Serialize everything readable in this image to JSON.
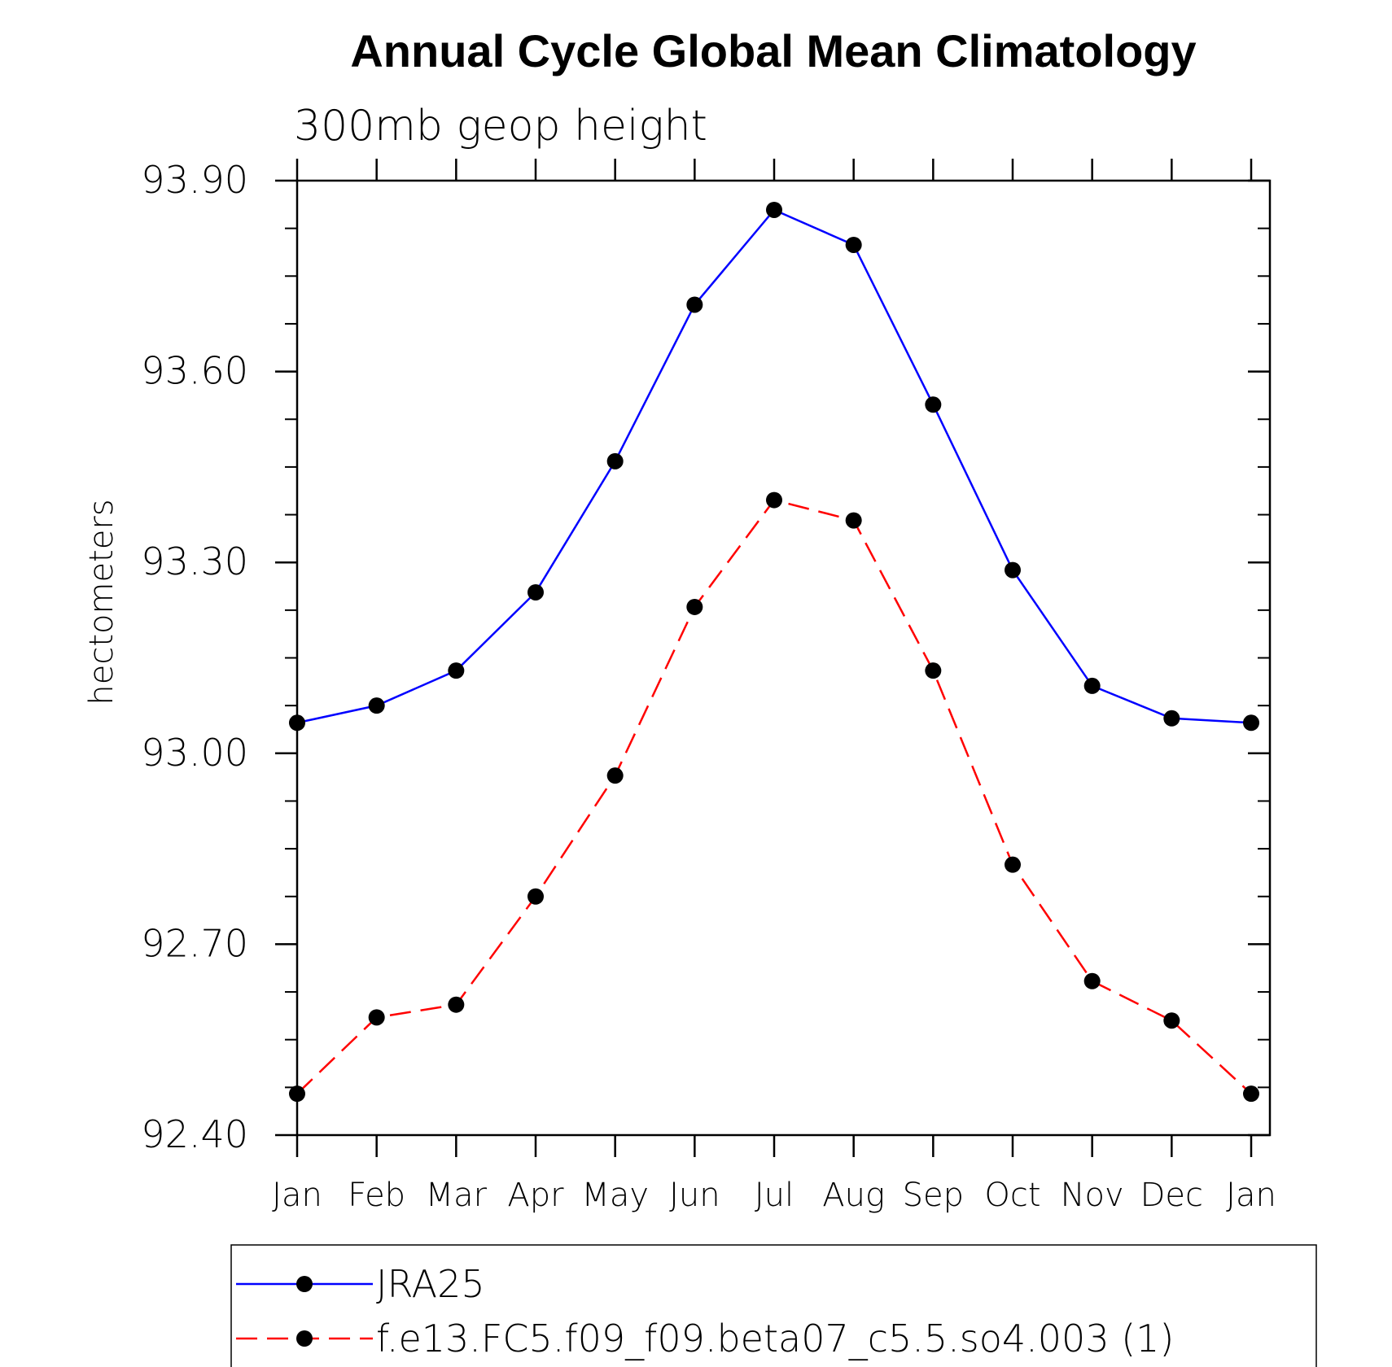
{
  "chart_data": {
    "type": "line",
    "title": "Annual Cycle Global Mean Climatology",
    "subtitle": "300mb geop height",
    "ylabel": "hectometers",
    "xlabel": "",
    "categories": [
      "Jan",
      "Feb",
      "Mar",
      "Apr",
      "May",
      "Jun",
      "Jul",
      "Aug",
      "Sep",
      "Oct",
      "Nov",
      "Dec",
      "Jan"
    ],
    "ylim": [
      92.4,
      93.9
    ],
    "yticks": [
      "93.90",
      "93.60",
      "93.30",
      "93.00",
      "92.70",
      "92.40"
    ],
    "ytick_values": [
      93.9,
      93.6,
      93.3,
      93.0,
      92.7,
      92.4
    ],
    "grid": false,
    "legend_position": "bottom",
    "series": [
      {
        "name": "JRA25",
        "color": "#0000ff",
        "line_style": "solid",
        "marker": "filled-circle",
        "values": [
          93.048,
          93.075,
          93.13,
          93.253,
          93.459,
          93.705,
          93.854,
          93.799,
          93.548,
          93.288,
          93.106,
          93.055,
          93.048
        ]
      },
      {
        "name": "f.e13.FC5.f09_f09.beta07_c5.5.so4.003 (1)",
        "color": "#ff0000",
        "line_style": "dashed",
        "marker": "filled-circle",
        "values": [
          92.465,
          92.585,
          92.605,
          92.775,
          92.965,
          93.23,
          93.398,
          93.366,
          93.13,
          92.825,
          92.642,
          92.58,
          92.465
        ]
      }
    ]
  }
}
